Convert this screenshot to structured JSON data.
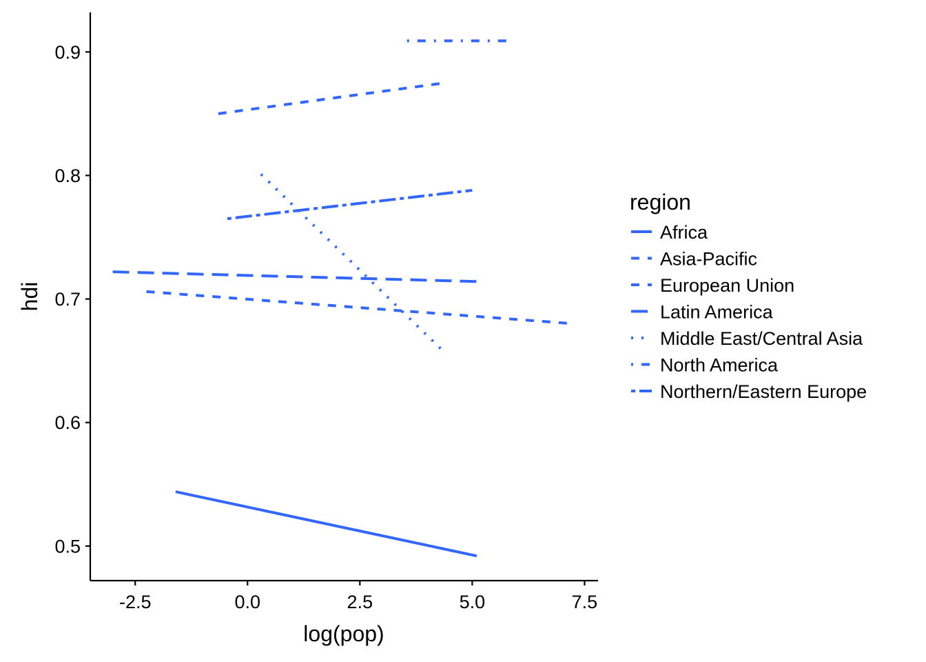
{
  "chart_data": {
    "type": "line",
    "title": "",
    "xlabel": "log(pop)",
    "ylabel": "hdi",
    "xlim": [
      -3.5,
      7.8
    ],
    "ylim": [
      0.472,
      0.932
    ],
    "x_ticks": [
      -2.5,
      0.0,
      2.5,
      5.0,
      7.5
    ],
    "x_tick_labels": [
      "-2.5",
      "0.0",
      "2.5",
      "5.0",
      "7.5"
    ],
    "y_ticks": [
      0.5,
      0.6,
      0.7,
      0.8,
      0.9
    ],
    "y_tick_labels": [
      "0.5",
      "0.6",
      "0.7",
      "0.8",
      "0.9"
    ],
    "grid": false,
    "legend": {
      "title": "region",
      "position": "right"
    },
    "line_color": "#3366FF",
    "series": [
      {
        "name": "Africa",
        "linetype": "solid",
        "x": [
          -1.6,
          5.1
        ],
        "y": [
          0.544,
          0.492
        ]
      },
      {
        "name": "Asia-Pacific",
        "linetype": "dashed",
        "x": [
          -2.25,
          7.25
        ],
        "y": [
          0.706,
          0.68
        ]
      },
      {
        "name": "European Union",
        "linetype": "dashed",
        "x": [
          -0.65,
          4.4
        ],
        "y": [
          0.85,
          0.875
        ]
      },
      {
        "name": "Latin America",
        "linetype": "longdash",
        "x": [
          -3.0,
          5.25
        ],
        "y": [
          0.722,
          0.714
        ]
      },
      {
        "name": "Middle East/Central Asia",
        "linetype": "dotted",
        "x": [
          0.3,
          4.35
        ],
        "y": [
          0.801,
          0.658
        ]
      },
      {
        "name": "North America",
        "linetype": "dotdash",
        "x": [
          3.55,
          5.85
        ],
        "y": [
          0.909,
          0.909
        ]
      },
      {
        "name": "Northern/Eastern Europe",
        "linetype": "twodash",
        "x": [
          -0.45,
          5.0
        ],
        "y": [
          0.765,
          0.788
        ]
      }
    ]
  }
}
